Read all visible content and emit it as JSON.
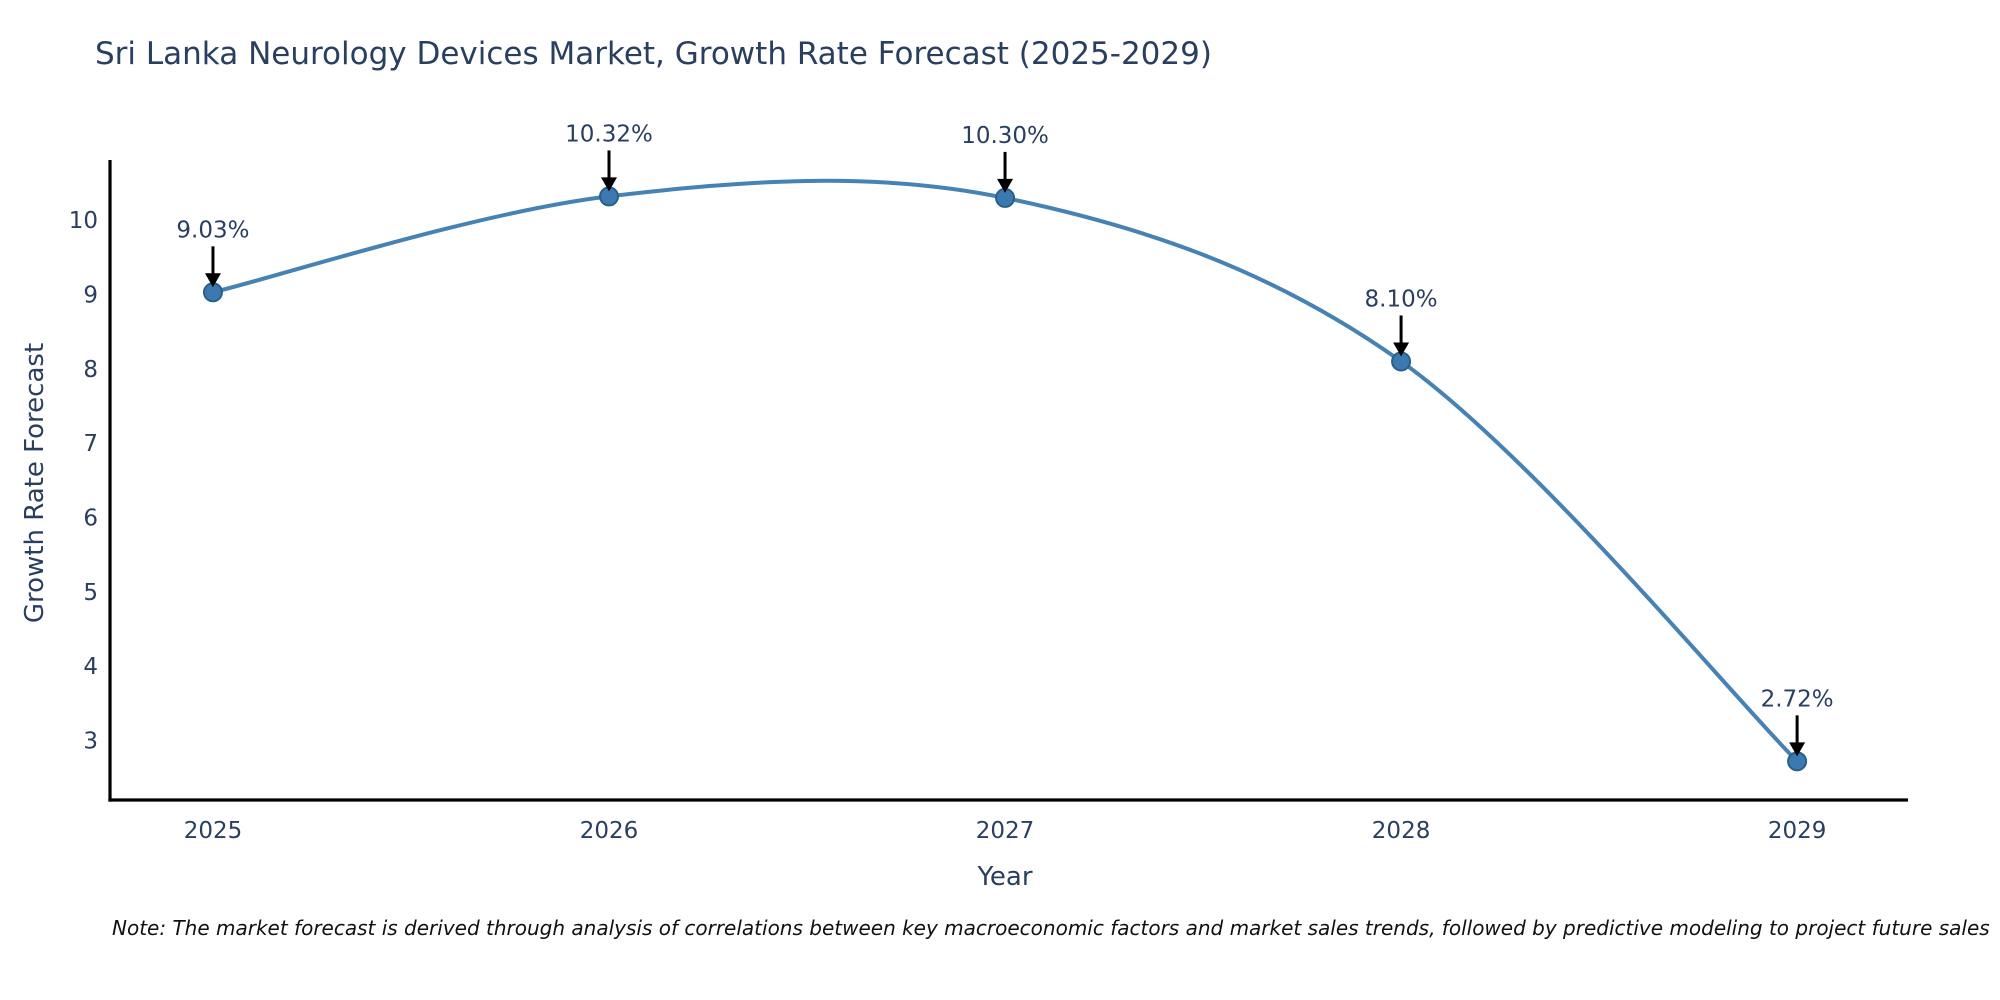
{
  "page": {
    "background": "#ffffff"
  },
  "chart_data": {
    "type": "line",
    "title": "Sri Lanka Neurology Devices Market, Growth Rate Forecast (2025-2029)",
    "xlabel": "Year",
    "ylabel": "Growth Rate Forecast",
    "x": [
      2025,
      2026,
      2027,
      2028,
      2029
    ],
    "series": [
      {
        "name": "Growth Rate Forecast",
        "values": [
          9.03,
          10.32,
          10.3,
          8.1,
          2.72
        ]
      }
    ],
    "point_labels": [
      "9.03%",
      "10.32%",
      "10.30%",
      "8.10%",
      "2.72%"
    ],
    "x_tick_labels": [
      "2025",
      "2026",
      "2027",
      "2028",
      "2029"
    ],
    "y_ticks": [
      3,
      4,
      5,
      6,
      7,
      8,
      9,
      10
    ],
    "xlim": [
      2024.74,
      2029.28
    ],
    "ylim": [
      2.2,
      10.81
    ],
    "grid": false,
    "legend_position": "none",
    "line_shape": "spline",
    "marker": "circle",
    "annotation_arrows": true,
    "colors": {
      "line": "#4682b4",
      "marker_fill": "#3c79b0",
      "marker_edge": "#2a5f8a",
      "axis": "#000000",
      "tick_text": "#2a3f5f",
      "annotation_text": "#2a3f5f",
      "arrow": "#000000",
      "title_text": "#2a3f5f",
      "note_text": "#111111"
    }
  },
  "footnote": "Note: The market forecast is derived through analysis of correlations between key macroeconomic factors and market sales trends, followed by predictive modeling to project future sales"
}
